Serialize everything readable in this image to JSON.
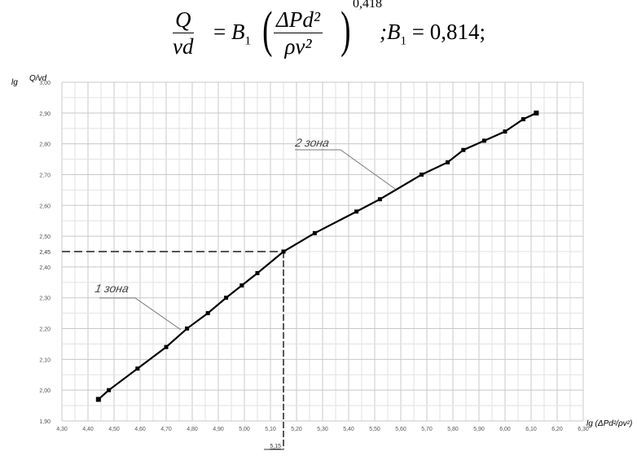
{
  "formula": {
    "lhs_num": "Q",
    "lhs_den": "vd",
    "eq": "=",
    "coef": "B",
    "coef_sub": "1",
    "rhs_num": "ΔPd²",
    "rhs_den": "ρv²",
    "exponent": "0,418",
    "tail": ";B",
    "tail_sub": "1",
    "tail_value": " = 0,814;"
  },
  "chart_data": {
    "type": "line",
    "xlabel": "lg (ΔPd²/ρv²)",
    "ylabel": "lg Q/vd",
    "xlim": [
      4.3,
      6.3
    ],
    "ylim": [
      1.9,
      3.0
    ],
    "x_ticks": [
      "4,30",
      "4,40",
      "4,50",
      "4,60",
      "4,70",
      "4,80",
      "4,90",
      "5,00",
      "5,10",
      "5,20",
      "5,30",
      "5,40",
      "5,50",
      "5,60",
      "5,70",
      "5,80",
      "5,90",
      "6,00",
      "6,10",
      "6,20",
      "6,30"
    ],
    "y_ticks": [
      "1,90",
      "2,00",
      "2,10",
      "2,20",
      "2,30",
      "2,40",
      "2,50",
      "2,60",
      "2,70",
      "2,80",
      "2,90",
      "3,00"
    ],
    "grid": true,
    "series": [
      {
        "x": [
          4.44,
          4.48,
          4.59,
          4.7,
          4.78,
          4.86,
          4.93,
          4.99,
          5.05,
          5.15,
          5.27,
          5.43,
          5.52,
          5.68,
          5.78,
          5.84,
          5.92,
          6.0,
          6.07,
          6.12
        ],
        "y": [
          1.97,
          2.0,
          2.07,
          2.14,
          2.2,
          2.25,
          2.3,
          2.34,
          2.38,
          2.45,
          2.51,
          2.58,
          2.62,
          2.7,
          2.74,
          2.78,
          2.81,
          2.84,
          2.88,
          2.9
        ],
        "color": "#000000"
      }
    ],
    "reference": {
      "x": 5.15,
      "y": 2.45,
      "x_label": "5,15",
      "y_label": "2,45"
    },
    "annotations": [
      {
        "text": "1 зона"
      },
      {
        "text": "2 зона"
      }
    ]
  }
}
